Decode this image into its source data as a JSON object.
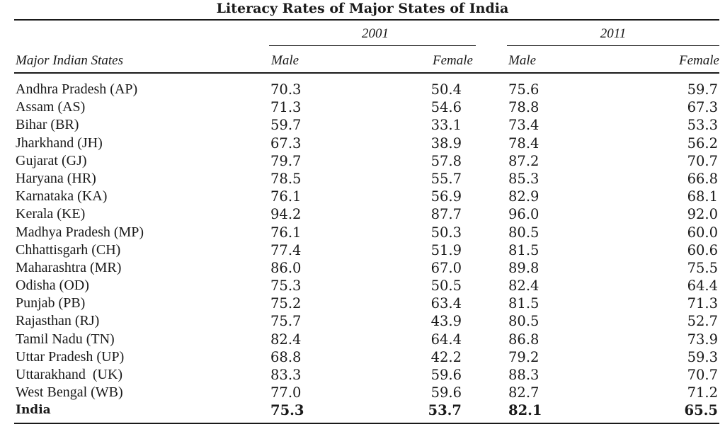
{
  "title": "Literacy Rates of Major States of India",
  "header": {
    "state_label": "Major Indian States",
    "year_2001": "2001",
    "year_2011": "2011",
    "male": "Male",
    "female": "Female"
  },
  "rows": [
    {
      "state": "Andhra Pradesh (AP)",
      "m2001": "70.3",
      "f2001": "50.4",
      "m2011": "75.6",
      "f2011": "59.7"
    },
    {
      "state": "Assam (AS)",
      "m2001": "71.3",
      "f2001": "54.6",
      "m2011": "78.8",
      "f2011": "67.3"
    },
    {
      "state": "Bihar (BR)",
      "m2001": "59.7",
      "f2001": "33.1",
      "m2011": "73.4",
      "f2011": "53.3"
    },
    {
      "state": "Jharkhand (JH)",
      "m2001": "67.3",
      "f2001": "38.9",
      "m2011": "78.4",
      "f2011": "56.2"
    },
    {
      "state": "Gujarat (GJ)",
      "m2001": "79.7",
      "f2001": "57.8",
      "m2011": "87.2",
      "f2011": "70.7"
    },
    {
      "state": "Haryana (HR)",
      "m2001": "78.5",
      "f2001": "55.7",
      "m2011": "85.3",
      "f2011": "66.8"
    },
    {
      "state": "Karnataka (KA)",
      "m2001": "76.1",
      "f2001": "56.9",
      "m2011": "82.9",
      "f2011": "68.1"
    },
    {
      "state": "Kerala (KE)",
      "m2001": "94.2",
      "f2001": "87.7",
      "m2011": "96.0",
      "f2011": "92.0"
    },
    {
      "state": "Madhya Pradesh (MP)",
      "m2001": "76.1",
      "f2001": "50.3",
      "m2011": "80.5",
      "f2011": "60.0"
    },
    {
      "state": "Chhattisgarh (CH)",
      "m2001": "77.4",
      "f2001": "51.9",
      "m2011": "81.5",
      "f2011": "60.6"
    },
    {
      "state": "Maharashtra (MR)",
      "m2001": "86.0",
      "f2001": "67.0",
      "m2011": "89.8",
      "f2011": "75.5"
    },
    {
      "state": "Odisha (OD)",
      "m2001": "75.3",
      "f2001": "50.5",
      "m2011": "82.4",
      "f2011": "64.4"
    },
    {
      "state": "Punjab (PB)",
      "m2001": "75.2",
      "f2001": "63.4",
      "m2011": "81.5",
      "f2011": "71.3"
    },
    {
      "state": "Rajasthan (RJ)",
      "m2001": "75.7",
      "f2001": "43.9",
      "m2011": "80.5",
      "f2011": "52.7"
    },
    {
      "state": "Tamil Nadu (TN)",
      "m2001": "82.4",
      "f2001": "64.4",
      "m2011": "86.8",
      "f2011": "73.9"
    },
    {
      "state": "Uttar Pradesh (UP)",
      "m2001": "68.8",
      "f2001": "42.2",
      "m2011": "79.2",
      "f2011": "59.3"
    },
    {
      "state": "Uttarakhand  (UK)",
      "m2001": "83.3",
      "f2001": "59.6",
      "m2011": "88.3",
      "f2011": "70.7"
    },
    {
      "state": "West Bengal (WB)",
      "m2001": "77.0",
      "f2001": "59.6",
      "m2011": "82.7",
      "f2011": "71.2"
    }
  ],
  "total": {
    "state": "India",
    "m2001": "75.3",
    "f2001": "53.7",
    "m2011": "82.1",
    "f2011": "65.5"
  }
}
